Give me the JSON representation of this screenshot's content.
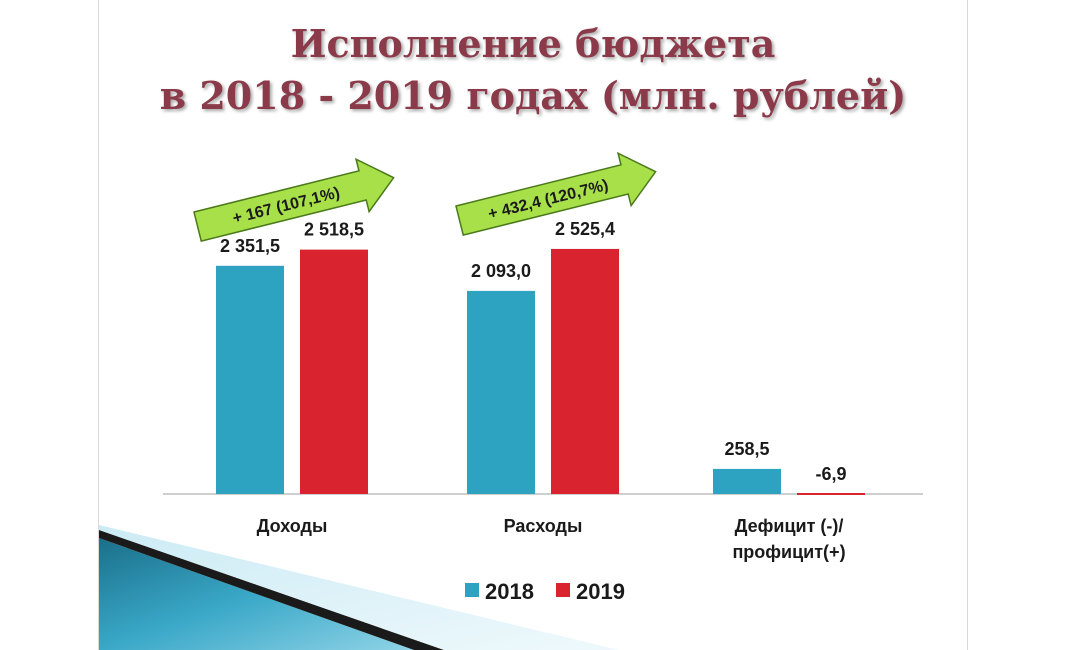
{
  "title_line1": "Исполнение бюджета",
  "title_line2": "в 2018 - 2019 годах (млн. рублей)",
  "colors": {
    "s2018": "#2ea3c1",
    "s2019": "#d9232f",
    "title": "#8b3a4a",
    "arrow": "#a8e04a"
  },
  "chart_data": {
    "type": "bar",
    "categories": [
      "Доходы",
      "Расходы",
      "Дефицит (-)/\nпрофицит(+)"
    ],
    "series": [
      {
        "name": "2018",
        "values": [
          2351.5,
          2093.0,
          258.5
        ],
        "labels": [
          "2 351,5",
          "2 093,0",
          "258,5"
        ]
      },
      {
        "name": "2019",
        "values": [
          2518.5,
          2525.4,
          -6.9
        ],
        "labels": [
          "2 518,5",
          "2 525,4",
          "-6,9"
        ]
      }
    ],
    "ylim": [
      0,
      2700
    ],
    "legend_position": "bottom",
    "annotations": [
      "+ 167  (107,1%)",
      "+ 432,4  (120,7%)"
    ]
  }
}
